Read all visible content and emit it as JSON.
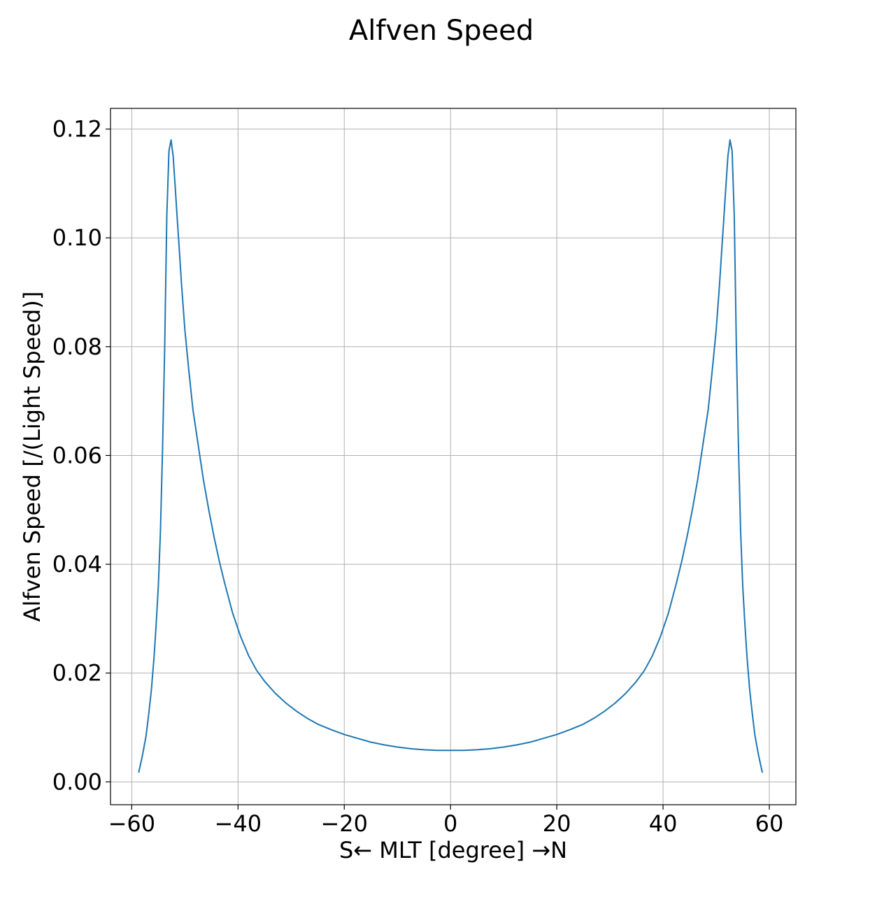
{
  "chart_data": {
    "type": "line",
    "title": "Alfven Speed",
    "xlabel": "S← MLT [degree] →N",
    "ylabel": "Alfven Speed [/(Light Speed)]",
    "xlim": [
      -64,
      65
    ],
    "ylim": [
      -0.0042,
      0.1238
    ],
    "xticks": [
      -60,
      -40,
      -20,
      0,
      20,
      40,
      60
    ],
    "xtick_labels": [
      "−60",
      "−40",
      "−20",
      "0",
      "20",
      "40",
      "60"
    ],
    "yticks": [
      0.0,
      0.02,
      0.04,
      0.06,
      0.08,
      0.1,
      0.12
    ],
    "ytick_labels": [
      "0.00",
      "0.02",
      "0.04",
      "0.06",
      "0.08",
      "0.10",
      "0.12"
    ],
    "grid": true,
    "colors": {
      "series": "#1f77b4"
    },
    "series": [
      {
        "x": [
          -58.7,
          -58.0,
          -57.3,
          -56.8,
          -56.3,
          -55.8,
          -55.4,
          -55.0,
          -54.6,
          -54.2,
          -53.8,
          -53.4,
          -53.0,
          -52.6,
          -52.2,
          -51.8,
          -51.4,
          -51.0,
          -50.6,
          -50.0,
          -49.3,
          -48.5,
          -47.5,
          -46.5,
          -45.5,
          -44.5,
          -43.5,
          -42.5,
          -41.0,
          -39.5,
          -38.0,
          -36.5,
          -35.0,
          -33.0,
          -31.0,
          -29.0,
          -27.0,
          -25.0,
          -22.5,
          -20.0,
          -17.5,
          -15.0,
          -12.5,
          -10.0,
          -7.5,
          -5.0,
          -2.5,
          0.0,
          2.5,
          5.0,
          7.5,
          10.0,
          12.5,
          15.0,
          17.5,
          20.0,
          22.5,
          25.0,
          27.0,
          29.0,
          31.0,
          33.0,
          35.0,
          36.5,
          38.0,
          39.5,
          41.0,
          42.5,
          43.5,
          44.5,
          45.5,
          46.5,
          47.5,
          48.5,
          49.3,
          50.0,
          50.6,
          51.0,
          51.4,
          51.8,
          52.2,
          52.6,
          53.0,
          53.4,
          53.8,
          54.2,
          54.6,
          55.0,
          55.4,
          55.8,
          56.3,
          56.8,
          57.3,
          58.0,
          58.7
        ],
        "y": [
          0.0017,
          0.0048,
          0.0085,
          0.0125,
          0.017,
          0.023,
          0.029,
          0.036,
          0.046,
          0.061,
          0.08,
          0.104,
          0.116,
          0.118,
          0.115,
          0.109,
          0.103,
          0.097,
          0.091,
          0.083,
          0.076,
          0.0685,
          0.062,
          0.0555,
          0.05,
          0.045,
          0.0405,
          0.0365,
          0.031,
          0.0267,
          0.0232,
          0.0205,
          0.0185,
          0.0163,
          0.0145,
          0.013,
          0.0117,
          0.0106,
          0.0096,
          0.0087,
          0.008,
          0.0073,
          0.0068,
          0.0064,
          0.0061,
          0.0059,
          0.0058,
          0.0058,
          0.0058,
          0.0059,
          0.0061,
          0.0064,
          0.0068,
          0.0073,
          0.008,
          0.0087,
          0.0096,
          0.0106,
          0.0117,
          0.013,
          0.0145,
          0.0163,
          0.0185,
          0.0205,
          0.0232,
          0.0267,
          0.031,
          0.0365,
          0.0405,
          0.045,
          0.05,
          0.0555,
          0.062,
          0.0685,
          0.076,
          0.083,
          0.091,
          0.097,
          0.103,
          0.109,
          0.115,
          0.118,
          0.116,
          0.104,
          0.08,
          0.061,
          0.046,
          0.036,
          0.029,
          0.023,
          0.017,
          0.0125,
          0.0085,
          0.0048,
          0.0017
        ]
      }
    ]
  }
}
